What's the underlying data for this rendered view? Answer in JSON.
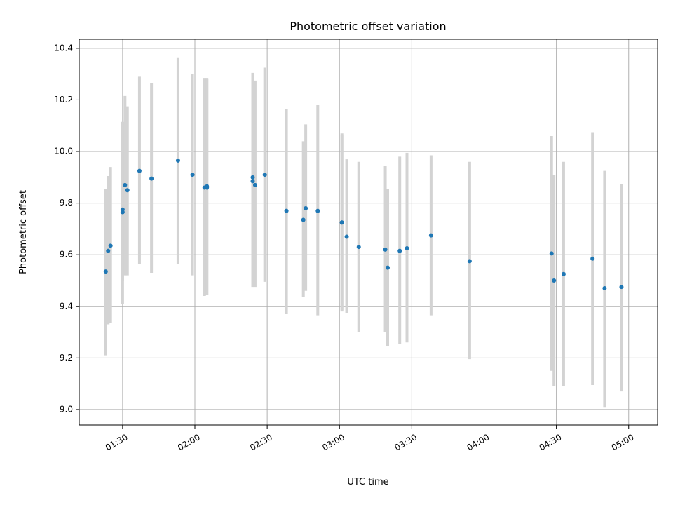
{
  "chart_data": {
    "type": "scatter",
    "title": "Photometric offset variation",
    "xlabel": "UTC time",
    "ylabel": "Photometric offset",
    "xlim": [
      "01:12",
      "05:12"
    ],
    "ylim": [
      8.94,
      10.435
    ],
    "grid": true,
    "x_ticks": [
      "01:30",
      "02:00",
      "02:30",
      "03:00",
      "03:30",
      "04:00",
      "04:30",
      "05:00"
    ],
    "y_ticks": [
      "9.0",
      "9.2",
      "9.4",
      "9.6",
      "9.8",
      "10.0",
      "10.2",
      "10.4"
    ],
    "colors": {
      "marker": "#1f77b4",
      "errorbar": "#d3d3d3",
      "grid": "#b0b0b0"
    },
    "points": [
      {
        "t": "01:23",
        "y": 9.535,
        "ylo": 9.21,
        "yhi": 9.855
      },
      {
        "t": "01:24",
        "y": 9.615,
        "ylo": 9.33,
        "yhi": 9.905
      },
      {
        "t": "01:25",
        "y": 9.635,
        "ylo": 9.335,
        "yhi": 9.94
      },
      {
        "t": "01:30",
        "y": 9.775,
        "ylo": 9.41,
        "yhi": 10.115
      },
      {
        "t": "01:30",
        "y": 9.765,
        "ylo": 9.5,
        "yhi": 10.05
      },
      {
        "t": "01:31",
        "y": 9.87,
        "ylo": 9.52,
        "yhi": 10.215
      },
      {
        "t": "01:32",
        "y": 9.85,
        "ylo": 9.52,
        "yhi": 10.175
      },
      {
        "t": "01:37",
        "y": 9.925,
        "ylo": 9.565,
        "yhi": 10.29
      },
      {
        "t": "01:42",
        "y": 9.895,
        "ylo": 9.53,
        "yhi": 10.265
      },
      {
        "t": "01:53",
        "y": 9.965,
        "ylo": 9.565,
        "yhi": 10.365
      },
      {
        "t": "01:59",
        "y": 9.91,
        "ylo": 9.52,
        "yhi": 10.3
      },
      {
        "t": "02:04",
        "y": 9.86,
        "ylo": 9.44,
        "yhi": 10.285
      },
      {
        "t": "02:05",
        "y": 9.86,
        "ylo": 9.445,
        "yhi": 10.28
      },
      {
        "t": "02:05",
        "y": 9.865,
        "ylo": 9.445,
        "yhi": 10.285
      },
      {
        "t": "02:24",
        "y": 9.9,
        "ylo": 9.475,
        "yhi": 10.305
      },
      {
        "t": "02:24",
        "y": 9.885,
        "ylo": 9.48,
        "yhi": 10.29
      },
      {
        "t": "02:25",
        "y": 9.87,
        "ylo": 9.475,
        "yhi": 10.275
      },
      {
        "t": "02:29",
        "y": 9.91,
        "ylo": 9.495,
        "yhi": 10.325
      },
      {
        "t": "02:38",
        "y": 9.77,
        "ylo": 9.37,
        "yhi": 10.165
      },
      {
        "t": "02:45",
        "y": 9.735,
        "ylo": 9.435,
        "yhi": 10.04
      },
      {
        "t": "02:46",
        "y": 9.78,
        "ylo": 9.46,
        "yhi": 10.105
      },
      {
        "t": "02:51",
        "y": 9.77,
        "ylo": 9.365,
        "yhi": 10.18
      },
      {
        "t": "03:01",
        "y": 9.725,
        "ylo": 9.38,
        "yhi": 10.07
      },
      {
        "t": "03:01",
        "y": 9.725,
        "ylo": 9.385,
        "yhi": 10.065
      },
      {
        "t": "03:03",
        "y": 9.67,
        "ylo": 9.375,
        "yhi": 9.97
      },
      {
        "t": "03:08",
        "y": 9.63,
        "ylo": 9.3,
        "yhi": 9.96
      },
      {
        "t": "03:19",
        "y": 9.62,
        "ylo": 9.3,
        "yhi": 9.945
      },
      {
        "t": "03:20",
        "y": 9.55,
        "ylo": 9.245,
        "yhi": 9.855
      },
      {
        "t": "03:25",
        "y": 9.615,
        "ylo": 9.255,
        "yhi": 9.98
      },
      {
        "t": "03:28",
        "y": 9.625,
        "ylo": 9.26,
        "yhi": 9.995
      },
      {
        "t": "03:38",
        "y": 9.675,
        "ylo": 9.365,
        "yhi": 9.985
      },
      {
        "t": "03:54",
        "y": 9.575,
        "ylo": 9.195,
        "yhi": 9.96
      },
      {
        "t": "04:28",
        "y": 9.605,
        "ylo": 9.15,
        "yhi": 10.06
      },
      {
        "t": "04:29",
        "y": 9.5,
        "ylo": 9.09,
        "yhi": 9.91
      },
      {
        "t": "04:33",
        "y": 9.525,
        "ylo": 9.09,
        "yhi": 9.96
      },
      {
        "t": "04:45",
        "y": 9.585,
        "ylo": 9.095,
        "yhi": 10.075
      },
      {
        "t": "04:50",
        "y": 9.47,
        "ylo": 9.01,
        "yhi": 9.925
      },
      {
        "t": "04:57",
        "y": 9.475,
        "ylo": 9.07,
        "yhi": 9.875
      }
    ]
  }
}
